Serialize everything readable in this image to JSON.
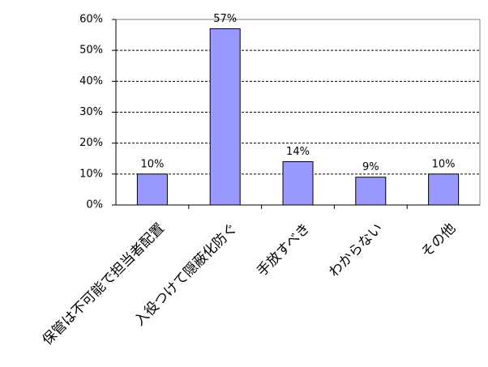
{
  "chart_data": {
    "type": "bar",
    "categories": [
      "保管は不可能で担当者配置",
      "入役つけて隠蔽化防ぐ",
      "手放すべき",
      "わからない",
      "その他"
    ],
    "values": [
      10,
      57,
      14,
      9,
      10
    ],
    "value_labels": [
      "10%",
      "57%",
      "14%",
      "9%",
      "10%"
    ],
    "color": "#9999ff",
    "ylim": [
      0,
      60
    ],
    "yticks": [
      {
        "value": 0,
        "label": "0%"
      },
      {
        "value": 10,
        "label": "10%"
      },
      {
        "value": 20,
        "label": "20%"
      },
      {
        "value": 30,
        "label": "30%"
      },
      {
        "value": 40,
        "label": "40%"
      },
      {
        "value": 50,
        "label": "50%"
      },
      {
        "value": 60,
        "label": "60%"
      }
    ],
    "grid": true
  }
}
